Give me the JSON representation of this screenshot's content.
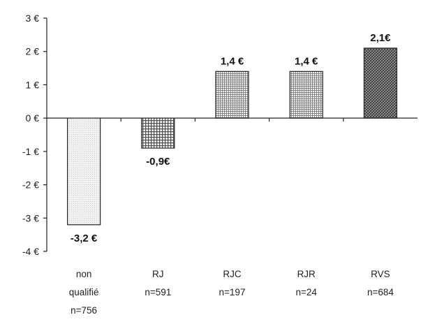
{
  "chart_data": {
    "type": "bar",
    "categories": [
      {
        "label_lines": [
          "non",
          "qualifié",
          "n=756"
        ],
        "value": -3.2,
        "data_label": "-3,2 €",
        "pattern": "pat-light"
      },
      {
        "label_lines": [
          "RJ",
          "n=591"
        ],
        "value": -0.9,
        "data_label": "-0,9€",
        "pattern": "pat-grid"
      },
      {
        "label_lines": [
          "RJC",
          "n=197"
        ],
        "value": 1.4,
        "data_label": "1,4 €",
        "pattern": "pat-fine"
      },
      {
        "label_lines": [
          "RJR",
          "n=24"
        ],
        "value": 1.4,
        "data_label": "1,4 €",
        "pattern": "pat-fine"
      },
      {
        "label_lines": [
          "RVS",
          "n=684"
        ],
        "value": 2.1,
        "data_label": "2,1€",
        "pattern": "pat-dark"
      }
    ],
    "yticks": [
      {
        "value": 3,
        "label": "3 €"
      },
      {
        "value": 2,
        "label": "2 €"
      },
      {
        "value": 1,
        "label": "1 €"
      },
      {
        "value": 0,
        "label": "0 €"
      },
      {
        "value": -1,
        "label": "-1 €"
      },
      {
        "value": -2,
        "label": "-2 €"
      },
      {
        "value": -3,
        "label": "-3 €"
      },
      {
        "value": -4,
        "label": "-4 €"
      }
    ],
    "ylim": [
      -4,
      3
    ],
    "grid": false,
    "title": "",
    "xlabel": "",
    "ylabel": ""
  }
}
